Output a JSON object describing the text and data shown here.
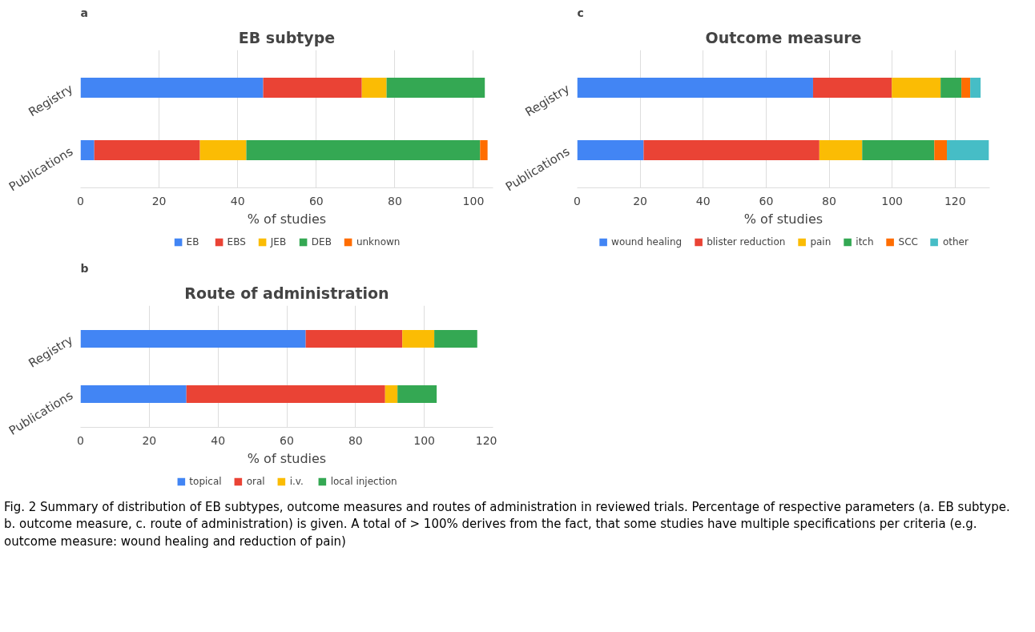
{
  "chart_data": [
    {
      "type": "bar",
      "orientation": "horizontal",
      "stacked": true,
      "title": "EB subtype",
      "xlabel": "% of studies",
      "categories": [
        "Registry",
        "Publications"
      ],
      "series": [
        {
          "name": "EB",
          "color": "#4285f4",
          "values": [
            46.5,
            3.5
          ]
        },
        {
          "name": "EBS",
          "color": "#ea4335",
          "values": [
            25.1,
            26.9
          ]
        },
        {
          "name": "JEB",
          "color": "#fbbc04",
          "values": [
            6.3,
            11.8
          ]
        },
        {
          "name": "DEB",
          "color": "#34a853",
          "values": [
            25.0,
            59.5
          ]
        },
        {
          "name": "unknown",
          "color": "#ff6d01",
          "values": [
            null,
            1.9
          ]
        }
      ],
      "xlim": [
        0,
        105
      ],
      "xticks": [
        0,
        20,
        40,
        60,
        80,
        100
      ],
      "grid": "x",
      "legend": "bottom",
      "annotations": [
        "a"
      ]
    },
    {
      "type": "bar",
      "orientation": "horizontal",
      "stacked": true,
      "title": "Outcome measure",
      "xlabel": "% of studies",
      "categories": [
        "Registry",
        "Publications"
      ],
      "series": [
        {
          "name": "wound healing",
          "color": "#4285f4",
          "values": [
            74.9,
            21.1
          ]
        },
        {
          "name": "blister reduction",
          "color": "#ea4335",
          "values": [
            25.0,
            55.8
          ]
        },
        {
          "name": "pain",
          "color": "#fbbc04",
          "values": [
            15.5,
            13.6
          ]
        },
        {
          "name": "itch",
          "color": "#34a853",
          "values": [
            6.6,
            22.9
          ]
        },
        {
          "name": "SCC",
          "color": "#ff6d01",
          "values": [
            2.8,
            4.0
          ]
        },
        {
          "name": "other",
          "color": "#46bdc6",
          "values": [
            3.3,
            13.3
          ]
        }
      ],
      "xlim": [
        0,
        131
      ],
      "xticks": [
        0,
        20,
        40,
        60,
        80,
        100,
        120
      ],
      "grid": "x",
      "legend": "bottom",
      "annotations": [
        "c"
      ]
    },
    {
      "type": "bar",
      "orientation": "horizontal",
      "stacked": true,
      "title": "Route of administration",
      "xlabel": "% of studies",
      "categories": [
        "Registry",
        "Publications"
      ],
      "series": [
        {
          "name": "topical",
          "color": "#4285f4",
          "values": [
            65.5,
            30.8
          ]
        },
        {
          "name": "oral",
          "color": "#ea4335",
          "values": [
            28.1,
            57.8
          ]
        },
        {
          "name": "i.v.",
          "color": "#fbbc04",
          "values": [
            9.3,
            3.6
          ]
        },
        {
          "name": "local injection",
          "color": "#34a853",
          "values": [
            12.5,
            11.4
          ]
        }
      ],
      "xlim": [
        0,
        120
      ],
      "xticks": [
        0,
        20,
        40,
        60,
        80,
        100,
        120
      ],
      "grid": "x",
      "legend": "bottom",
      "annotations": [
        "b",
        "Fig. 2 Summary of distribution of EB subtypes, outcome measures and routes of administration in reviewed trials. Percentage of respective parameters (a. EB subtype. b. outcome measure, c. route of administration) is given. A total of > 100% derives from the fact, that some studies have multiple specifications per criteria (e.g. outcome measure: wound healing and reduction of pain)"
      ]
    }
  ]
}
